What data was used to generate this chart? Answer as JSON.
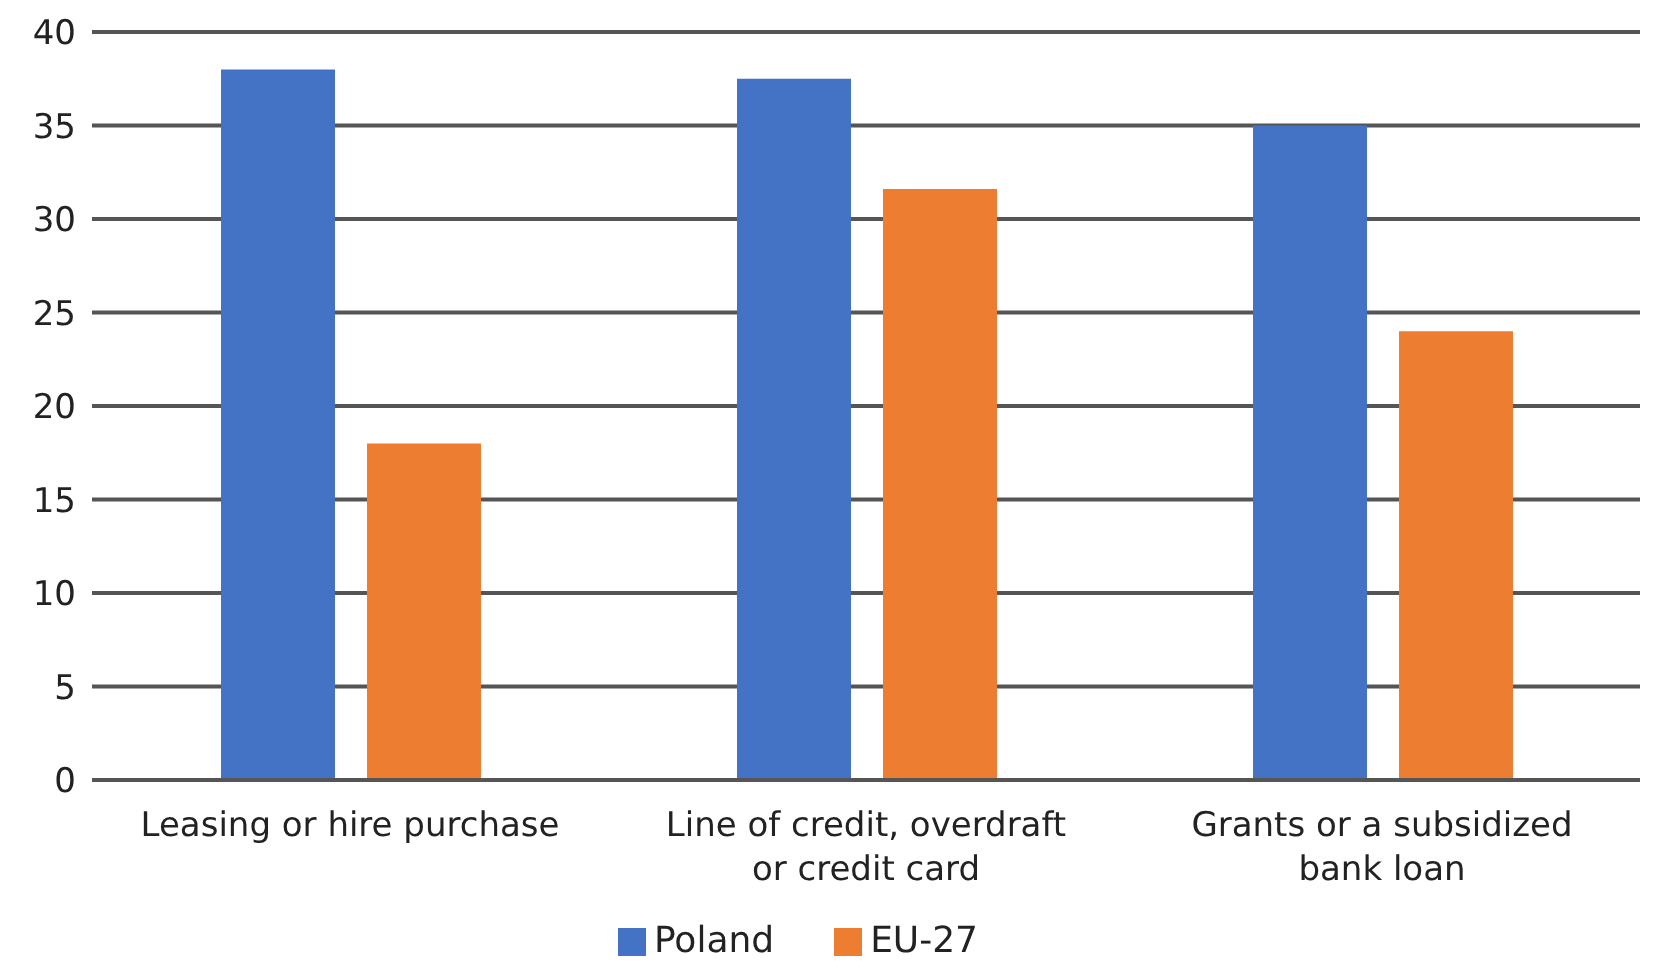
{
  "chart_data": {
    "type": "bar",
    "categories": [
      "Leasing or hire purchase",
      "Line of credit, overdraft or credit card",
      "Grants or a subsidized bank loan"
    ],
    "series": [
      {
        "name": "Poland",
        "color": "#4472c4",
        "values": [
          38,
          37.5,
          35
        ]
      },
      {
        "name": "EU-27",
        "color": "#ed7d31",
        "values": [
          18,
          31.6,
          24
        ]
      }
    ],
    "ylim": [
      0,
      40
    ],
    "yticks": [
      0,
      5,
      10,
      15,
      20,
      25,
      30,
      35,
      40
    ],
    "grid": "y",
    "legend": "bottom"
  }
}
